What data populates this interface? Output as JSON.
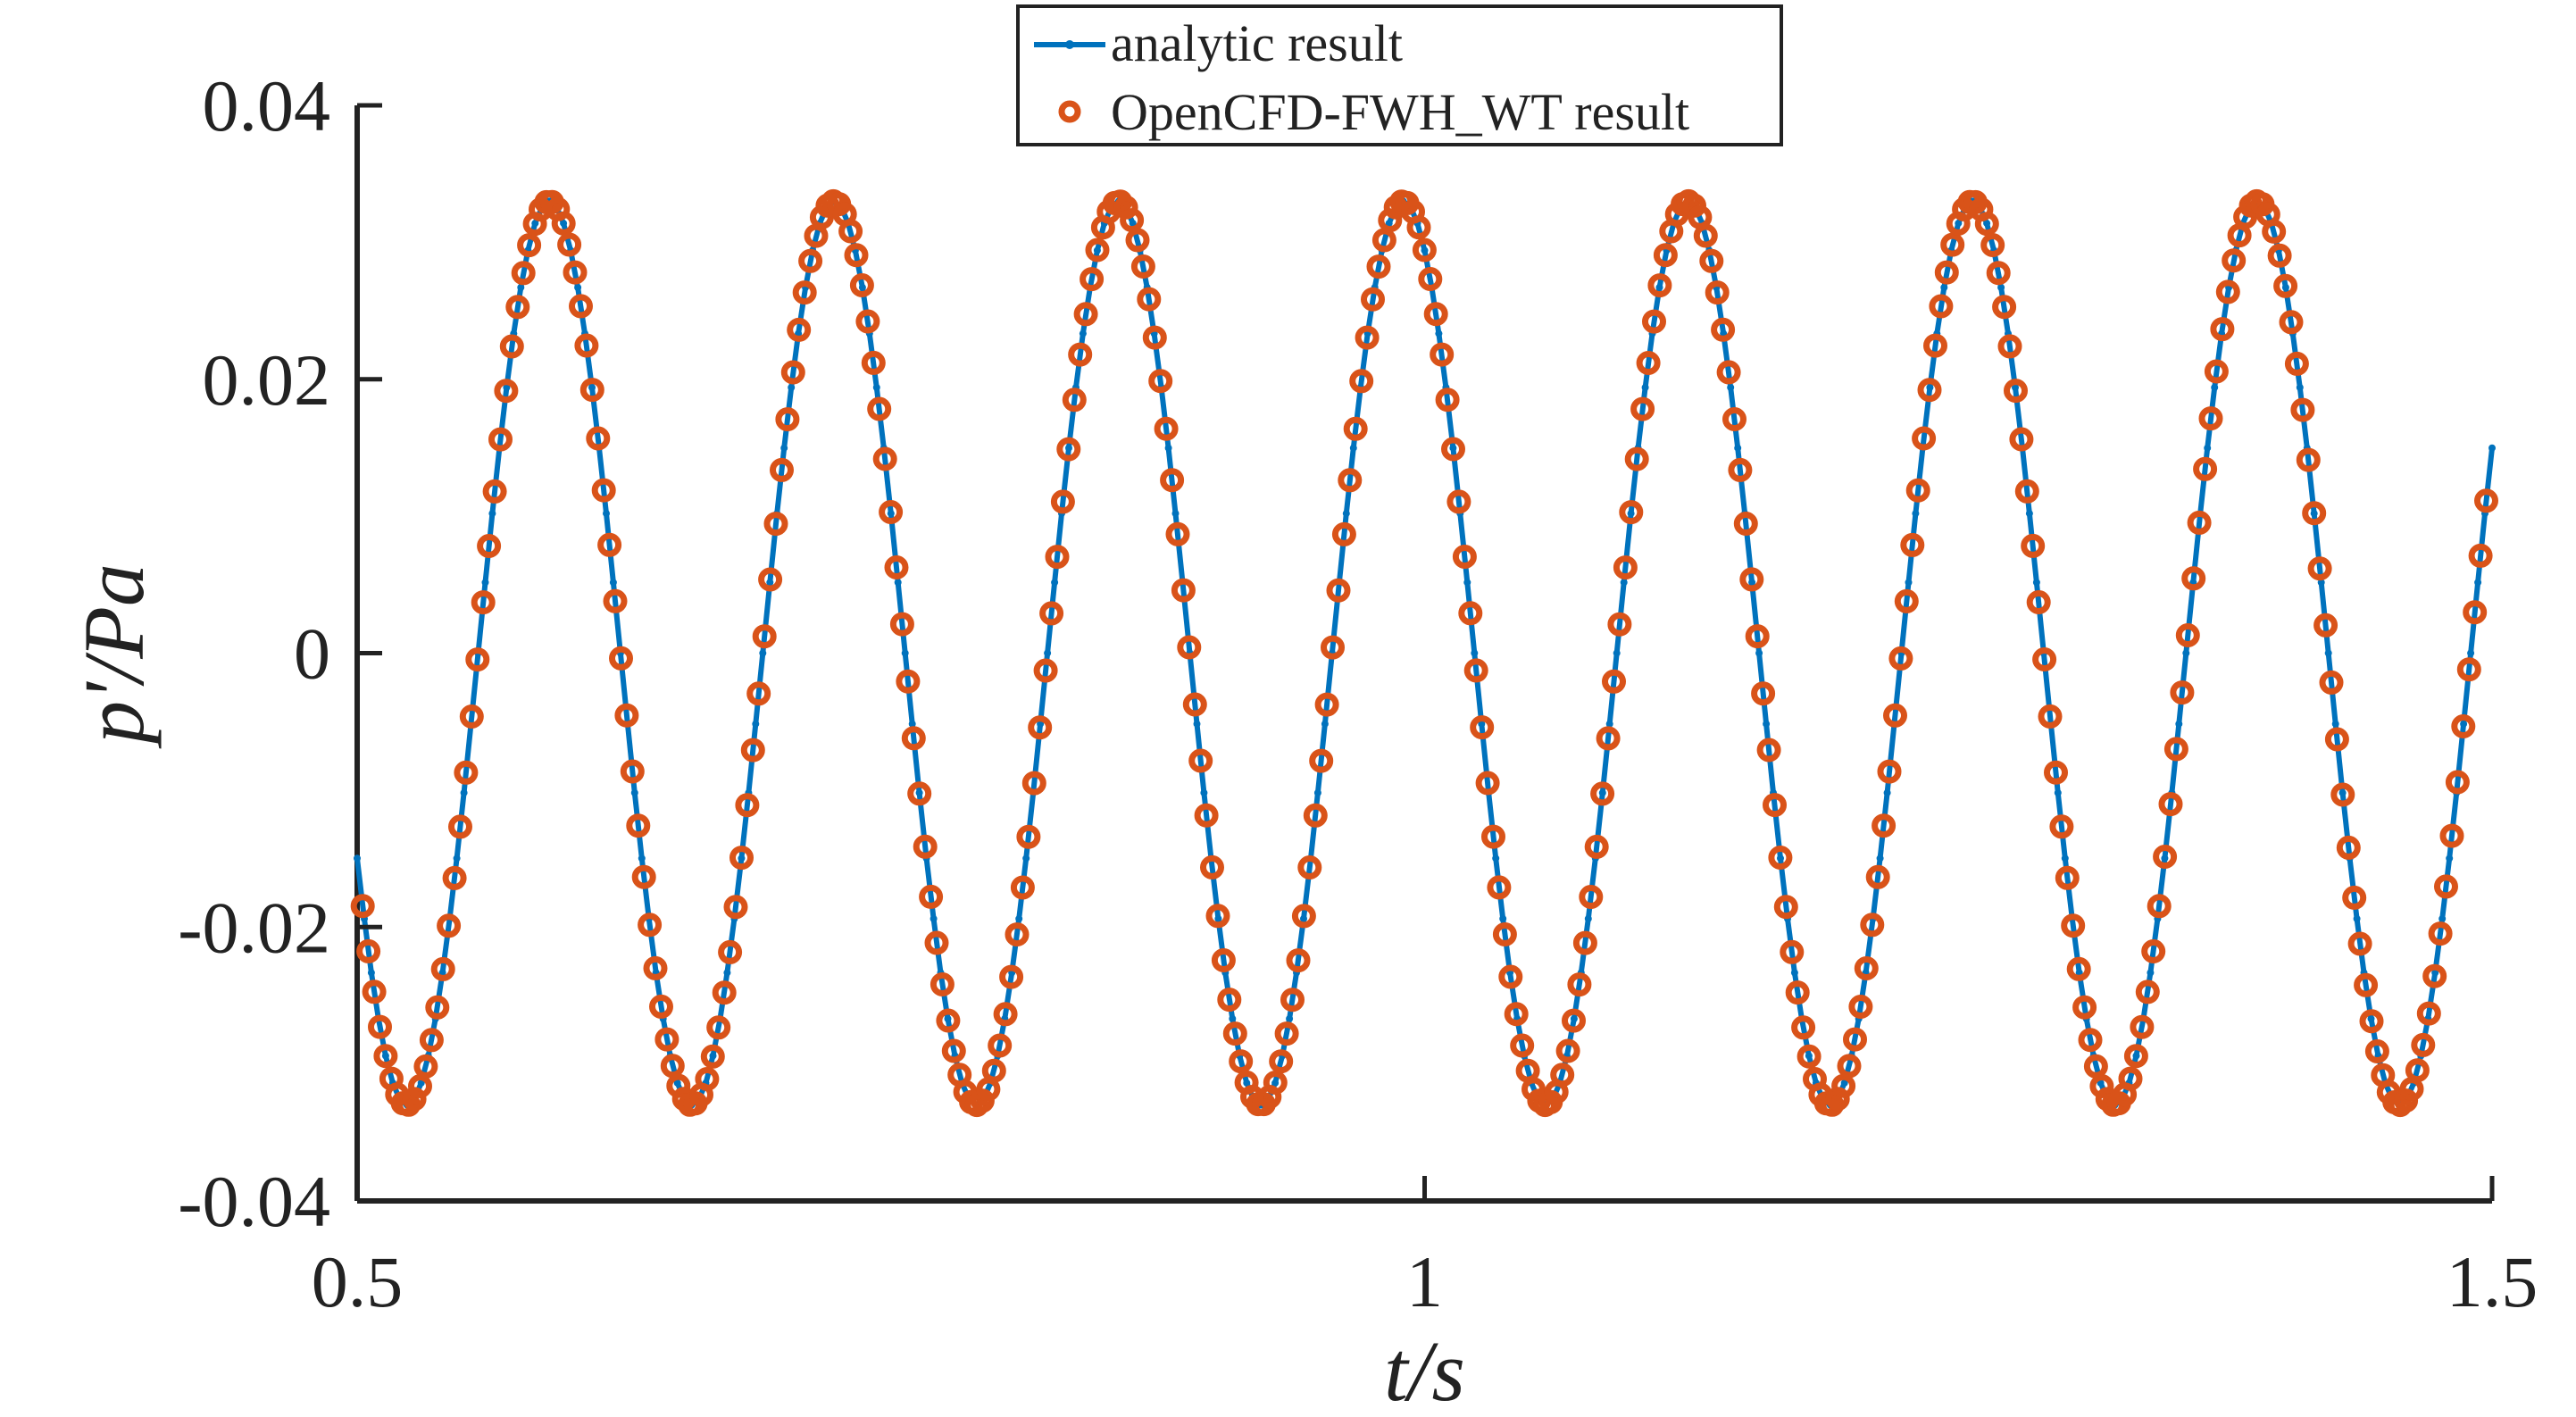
{
  "chart_data": {
    "type": "line",
    "title": "",
    "xlabel": "t/s",
    "ylabel": "p'/Pa",
    "xlim": [
      0.5,
      1.5
    ],
    "ylim": [
      -0.04,
      0.04
    ],
    "xticks": [
      0.5,
      1,
      1.5
    ],
    "xtick_labels": [
      "0.5",
      "1",
      "1.5"
    ],
    "yticks": [
      -0.04,
      -0.02,
      0,
      0.02,
      0.04
    ],
    "ytick_labels": [
      "-0.04",
      "-0.02",
      "0",
      "0.02",
      "0.04"
    ],
    "grid": false,
    "legend_placement": "top-center",
    "signal": {
      "amplitude": 0.033,
      "frequency": 7.5,
      "first_peak_t": 0.59,
      "t_start": 0.5,
      "t_end": 1.5
    },
    "series": [
      {
        "name": "analytic result",
        "style": "line",
        "color": "#0072BD",
        "x_start": 0.5,
        "x_end": 1.5,
        "n_points": 301
      },
      {
        "name": "OpenCFD-FWH_WT result",
        "style": "circle-markers",
        "color": "#D95319",
        "x_start": 0.5026,
        "x_end": 1.4973,
        "n_points": 371
      }
    ]
  }
}
